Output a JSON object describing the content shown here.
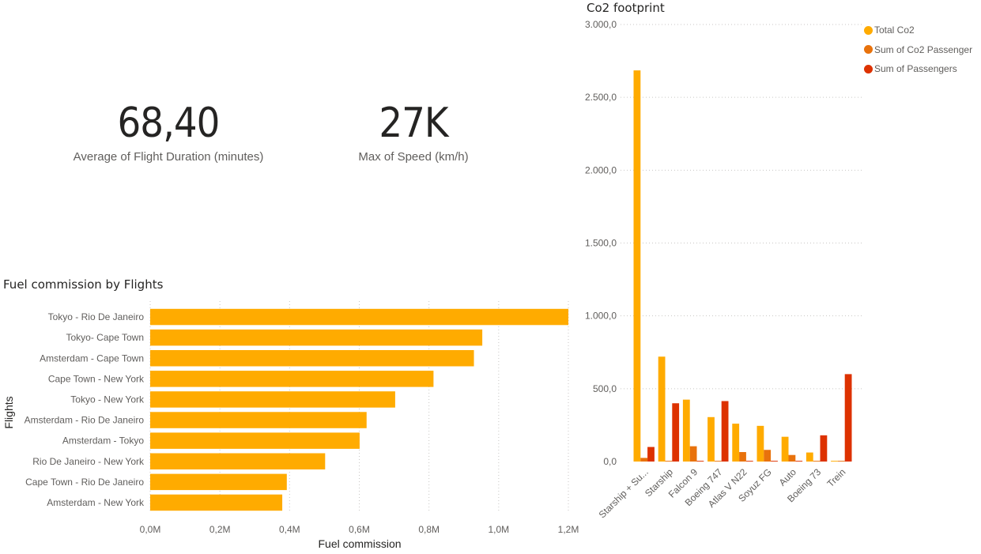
{
  "kpis": [
    {
      "value": "68,40",
      "label": "Average of Flight Duration (minutes)"
    },
    {
      "value": "27K",
      "label": "Max of Speed (km/h)"
    }
  ],
  "colors": {
    "total": "#FFAB00",
    "co2_passenger": "#E8720C",
    "passengers": "#DD3200",
    "grid": "#c8c6c4",
    "text": "#605e5c"
  },
  "chart_data": [
    {
      "type": "bar",
      "orientation": "horizontal",
      "title": "Fuel commission by Flights",
      "xlabel": "Fuel commission",
      "ylabel": "Flights",
      "categories": [
        "Tokyo - Rio De Janeiro",
        "Tokyo- Cape Town",
        "Amsterdam - Cape Town",
        "Cape Town - New York",
        "Tokyo - New York",
        "Amsterdam - Rio De Janeiro",
        "Amsterdam - Tokyo",
        "Rio De Janeiro - New York",
        "Cape Town - Rio De Janeiro",
        "Amsterdam - New York"
      ],
      "values": [
        1200000,
        953000,
        929000,
        813000,
        703000,
        621000,
        601000,
        502000,
        392000,
        379000
      ],
      "xlim": [
        0,
        1200000
      ],
      "xticks": [
        "0,0M",
        "0,2M",
        "0,4M",
        "0,6M",
        "0,8M",
        "1,0M",
        "1,2M"
      ],
      "grid": true
    },
    {
      "type": "bar",
      "title": "Co2 footprint",
      "categories": [
        "Starship + Su...",
        "Starship",
        "Falcon 9",
        "Boeing 747",
        "Atlas V N22",
        "Soyuz FG",
        "Auto",
        "Boeing 73",
        "Trein"
      ],
      "series": [
        {
          "name": "Total Co2",
          "values": [
            2685,
            720,
            425,
            305,
            260,
            245,
            170,
            62,
            5
          ]
        },
        {
          "name": "Sum of Co2 Passenger",
          "values": [
            25,
            5,
            105,
            5,
            65,
            80,
            45,
            5,
            5
          ]
        },
        {
          "name": "Sum of Passengers",
          "values": [
            100,
            400,
            5,
            415,
            5,
            5,
            5,
            180,
            600
          ]
        }
      ],
      "ylim": [
        0,
        3000
      ],
      "yticks": [
        "0,0",
        "500,0",
        "1.000,0",
        "1.500,0",
        "2.000,0",
        "2.500,0",
        "3.000,0"
      ],
      "legend": "top-right",
      "grid": true
    }
  ]
}
